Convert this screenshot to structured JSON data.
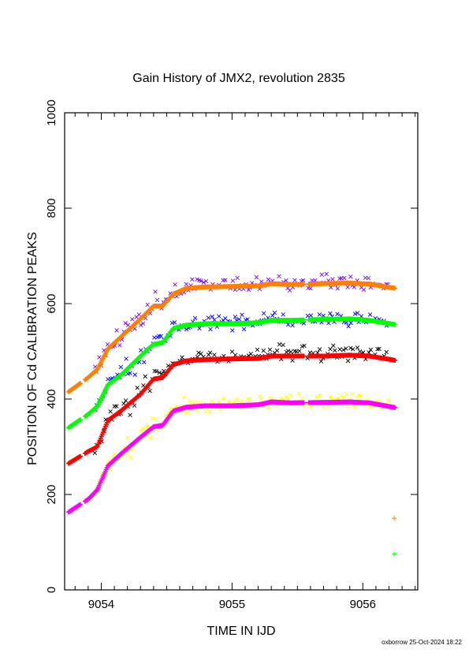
{
  "chart_data": {
    "type": "scatter",
    "title": "Gain History of JMX2, revolution 2835",
    "xlabel": "TIME IN IJD",
    "ylabel": "POSITION OF Cd CALIBRATION PEAKS",
    "xlim": [
      9053.72,
      9056.42
    ],
    "ylim": [
      0,
      1000
    ],
    "x_ticks": [
      9054,
      9055,
      9056
    ],
    "y_ticks": [
      0,
      200,
      400,
      600,
      800,
      1000
    ],
    "grid": false,
    "footer": "oxborrow 25-Oct-2024 18:22",
    "fit_series": [
      {
        "color": "#ff8000",
        "points": [
          [
            9053.75,
            415
          ],
          [
            9053.9,
            445
          ],
          [
            9053.97,
            462
          ],
          [
            9054.05,
            505
          ],
          [
            9054.15,
            530
          ],
          [
            9054.3,
            568
          ],
          [
            9054.4,
            595
          ],
          [
            9054.47,
            595
          ],
          [
            9054.55,
            620
          ],
          [
            9054.65,
            632
          ],
          [
            9054.8,
            635
          ],
          [
            9055.0,
            636
          ],
          [
            9055.2,
            637
          ],
          [
            9055.3,
            642
          ],
          [
            9055.45,
            640
          ],
          [
            9055.7,
            642
          ],
          [
            9055.9,
            643
          ],
          [
            9056.05,
            641
          ],
          [
            9056.25,
            632
          ]
        ]
      },
      {
        "color": "#00ff00",
        "points": [
          [
            9053.75,
            340
          ],
          [
            9053.9,
            368
          ],
          [
            9053.97,
            385
          ],
          [
            9054.05,
            430
          ],
          [
            9054.15,
            450
          ],
          [
            9054.3,
            490
          ],
          [
            9054.4,
            515
          ],
          [
            9054.47,
            518
          ],
          [
            9054.55,
            548
          ],
          [
            9054.65,
            555
          ],
          [
            9054.8,
            558
          ],
          [
            9055.0,
            558
          ],
          [
            9055.2,
            560
          ],
          [
            9055.3,
            565
          ],
          [
            9055.45,
            565
          ],
          [
            9055.7,
            567
          ],
          [
            9055.9,
            568
          ],
          [
            9056.05,
            565
          ],
          [
            9056.25,
            556
          ]
        ]
      },
      {
        "color": "#ff0000",
        "points": [
          [
            9053.75,
            265
          ],
          [
            9053.9,
            290
          ],
          [
            9053.97,
            300
          ],
          [
            9054.05,
            355
          ],
          [
            9054.15,
            375
          ],
          [
            9054.3,
            410
          ],
          [
            9054.4,
            442
          ],
          [
            9054.47,
            445
          ],
          [
            9054.55,
            472
          ],
          [
            9054.65,
            480
          ],
          [
            9054.8,
            483
          ],
          [
            9055.0,
            484
          ],
          [
            9055.2,
            485
          ],
          [
            9055.3,
            490
          ],
          [
            9055.45,
            490
          ],
          [
            9055.7,
            490
          ],
          [
            9055.9,
            492
          ],
          [
            9056.05,
            490
          ],
          [
            9056.25,
            481
          ]
        ]
      },
      {
        "color": "#ff00ff",
        "points": [
          [
            9053.75,
            163
          ],
          [
            9053.9,
            190
          ],
          [
            9053.97,
            210
          ],
          [
            9054.05,
            260
          ],
          [
            9054.15,
            285
          ],
          [
            9054.3,
            320
          ],
          [
            9054.4,
            342
          ],
          [
            9054.47,
            345
          ],
          [
            9054.55,
            375
          ],
          [
            9054.65,
            383
          ],
          [
            9054.8,
            386
          ],
          [
            9055.0,
            386
          ],
          [
            9055.2,
            388
          ],
          [
            9055.3,
            394
          ],
          [
            9055.45,
            392
          ],
          [
            9055.7,
            393
          ],
          [
            9055.9,
            394
          ],
          [
            9056.05,
            392
          ],
          [
            9056.25,
            382
          ]
        ]
      }
    ],
    "scatter_series": [
      {
        "color": "#8000ff",
        "offset": 3,
        "spread": 15
      },
      {
        "color": "#0000ff",
        "offset": 1,
        "spread": 14
      },
      {
        "color": "#000000",
        "offset": 5,
        "spread": 15
      },
      {
        "color": "#ffff00",
        "offset": 4,
        "spread": 14
      }
    ],
    "extra_markers": [
      {
        "color": "#ff8000",
        "x": 9056.24,
        "y": 150
      },
      {
        "color": "#00ff00",
        "x": 9056.24,
        "y": 75
      }
    ]
  }
}
